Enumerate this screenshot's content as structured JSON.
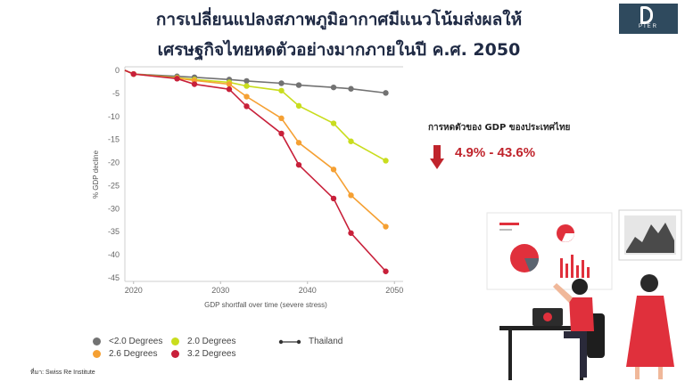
{
  "header": {
    "title_line1": "การเปลี่ยนแปลงสภาพภูมิอากาศมีแนวโน้มส่งผลให้",
    "title_line2": "เศรษฐกิจไทยหดตัวอย่างมากภายในปี ค.ศ. 2050",
    "logo_text": "PIER"
  },
  "callout": {
    "heading": "การหดตัวของ GDP ของประเทศไทย",
    "range": "4.9% - 43.6%",
    "color": "#c0242c"
  },
  "source": "ที่มา: Swiss Re Institute",
  "chart_data": {
    "type": "line",
    "xlabel": "GDP shortfall over time (severe stress)",
    "ylabel": "% GDP decline",
    "xlim": [
      2019,
      2051
    ],
    "ylim": [
      -45,
      0
    ],
    "x_ticks": [
      2020,
      2030,
      2040,
      2050
    ],
    "y_ticks": [
      0,
      -5,
      -10,
      -15,
      -20,
      -25,
      -30,
      -35,
      -40,
      -45
    ],
    "grid": false,
    "legend_placement": "bottom",
    "x": [
      2019,
      2020,
      2025,
      2027,
      2031,
      2033,
      2037,
      2039,
      2043,
      2045,
      2049
    ],
    "series": [
      {
        "name": "<2.0 Degrees",
        "color": "#727272",
        "values": [
          0,
          -0.8,
          -1.3,
          -1.5,
          -2.0,
          -2.3,
          -2.8,
          -3.2,
          -3.7,
          -4.0,
          -4.9
        ]
      },
      {
        "name": "2.0 Degrees",
        "color": "#c9dd1e",
        "values": [
          0,
          -0.8,
          -1.6,
          -2.0,
          -2.6,
          -3.4,
          -4.4,
          -7.7,
          -11.5,
          -15.4,
          -19.6
        ]
      },
      {
        "name": "2.6 Degrees",
        "color": "#f5a033",
        "values": [
          0,
          -0.8,
          -1.7,
          -2.2,
          -3.0,
          -5.7,
          -10.4,
          -15.7,
          -21.5,
          -27.1,
          -33.9
        ]
      },
      {
        "name": "3.2 Degrees",
        "color": "#c8203a",
        "values": [
          0,
          -0.8,
          -1.8,
          -3.0,
          -4.1,
          -7.8,
          -13.7,
          -20.5,
          -27.8,
          -35.3,
          -43.6
        ]
      }
    ],
    "thailand_legend": "Thailand"
  }
}
